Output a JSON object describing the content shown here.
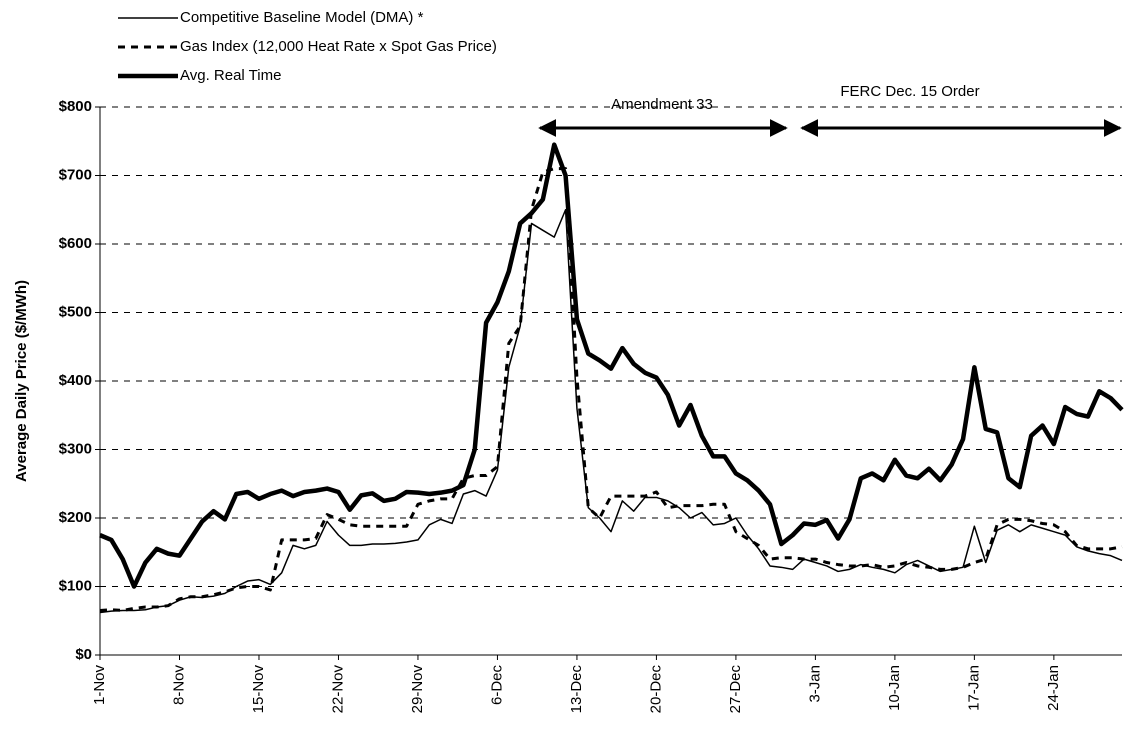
{
  "chart_data": {
    "type": "line",
    "y_label": "Average Daily Price ($/MWh)",
    "annotations": [
      "Amendment 33",
      "FERC Dec. 15 Order"
    ],
    "categories": [
      "1-Nov",
      null,
      null,
      null,
      null,
      null,
      null,
      "8-Nov",
      null,
      null,
      null,
      null,
      null,
      null,
      "15-Nov",
      null,
      null,
      null,
      null,
      null,
      null,
      "22-Nov",
      null,
      null,
      null,
      null,
      null,
      null,
      "29-Nov",
      null,
      null,
      null,
      null,
      null,
      null,
      "6-Dec",
      null,
      null,
      null,
      null,
      null,
      null,
      "13-Dec",
      null,
      null,
      null,
      null,
      null,
      null,
      "20-Dec",
      null,
      null,
      null,
      null,
      null,
      null,
      "27-Dec",
      null,
      null,
      null,
      null,
      null,
      null,
      "3-Jan",
      null,
      null,
      null,
      null,
      null,
      null,
      "10-Jan",
      null,
      null,
      null,
      null,
      null,
      null,
      "17-Jan",
      null,
      null,
      null,
      null,
      null,
      null,
      "24-Jan",
      null,
      null,
      null,
      null,
      null,
      null
    ],
    "ylim": [
      0,
      800
    ],
    "yticks": [
      {
        "value": 0,
        "label": "$0"
      },
      {
        "value": 100,
        "label": "$100"
      },
      {
        "value": 200,
        "label": "$200"
      },
      {
        "value": 300,
        "label": "$300"
      },
      {
        "value": 400,
        "label": "$400"
      },
      {
        "value": 500,
        "label": "$500"
      },
      {
        "value": 600,
        "label": "$600"
      },
      {
        "value": 700,
        "label": "$700"
      },
      {
        "value": 800,
        "label": "$800"
      }
    ],
    "grid": true,
    "series": [
      {
        "name": "Competitive Baseline Model (DMA) *",
        "color": "#000000",
        "style": "thin",
        "values": [
          62,
          64,
          65,
          65,
          66,
          70,
          72,
          80,
          85,
          84,
          86,
          90,
          100,
          108,
          110,
          103,
          120,
          160,
          155,
          160,
          195,
          175,
          160,
          160,
          162,
          162,
          163,
          165,
          168,
          190,
          198,
          192,
          235,
          240,
          232,
          270,
          420,
          480,
          630,
          620,
          610,
          650,
          360,
          215,
          200,
          180,
          225,
          210,
          230,
          230,
          225,
          215,
          200,
          208,
          190,
          192,
          200,
          175,
          155,
          130,
          128,
          125,
          140,
          135,
          130,
          122,
          125,
          132,
          128,
          125,
          120,
          132,
          138,
          130,
          122,
          125,
          128,
          188,
          135,
          182,
          190,
          180,
          190,
          185,
          180,
          175,
          158,
          152,
          148,
          145,
          138
        ]
      },
      {
        "name": "Gas Index (12,000 Heat Rate x Spot Gas Price)",
        "color": "#000000",
        "style": "dashed",
        "values": [
          65,
          66,
          65,
          68,
          70,
          70,
          72,
          82,
          85,
          85,
          88,
          92,
          98,
          100,
          100,
          95,
          168,
          168,
          168,
          170,
          205,
          198,
          190,
          188,
          188,
          188,
          188,
          188,
          220,
          225,
          228,
          228,
          258,
          262,
          262,
          275,
          455,
          480,
          650,
          705,
          710,
          710,
          405,
          215,
          200,
          232,
          232,
          232,
          232,
          238,
          215,
          218,
          218,
          218,
          220,
          220,
          180,
          170,
          160,
          140,
          142,
          142,
          140,
          140,
          135,
          132,
          130,
          130,
          132,
          128,
          130,
          135,
          130,
          128,
          125,
          125,
          128,
          135,
          140,
          190,
          198,
          198,
          196,
          192,
          190,
          180,
          160,
          155,
          155,
          155,
          158
        ]
      },
      {
        "name": "Avg. Real Time",
        "color": "#000000",
        "style": "thick",
        "values": [
          175,
          168,
          140,
          100,
          135,
          155,
          148,
          145,
          170,
          195,
          210,
          198,
          235,
          238,
          228,
          235,
          240,
          232,
          238,
          240,
          243,
          238,
          212,
          233,
          236,
          225,
          228,
          238,
          237,
          235,
          237,
          240,
          248,
          300,
          485,
          515,
          560,
          630,
          645,
          665,
          745,
          700,
          490,
          440,
          430,
          418,
          448,
          425,
          412,
          405,
          380,
          335,
          365,
          320,
          290,
          290,
          265,
          255,
          240,
          220,
          162,
          175,
          192,
          190,
          197,
          170,
          198,
          258,
          265,
          255,
          285,
          262,
          258,
          272,
          255,
          278,
          315,
          420,
          330,
          325,
          258,
          245,
          320,
          335,
          308,
          362,
          352,
          348,
          385,
          375,
          358
        ]
      }
    ]
  }
}
